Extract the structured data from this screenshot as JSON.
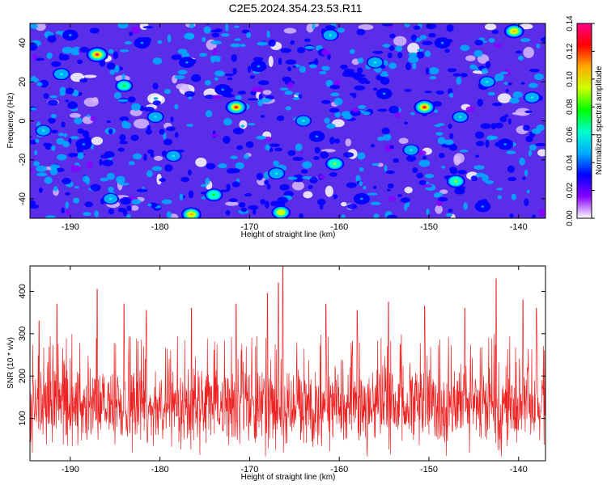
{
  "title": "C2E5.2024.354.23.53.R11",
  "chart_data": [
    {
      "type": "heatmap",
      "xlabel": "Height of straight line (km)",
      "ylabel": "Frequency (Hz)",
      "xlim": [
        -194.5,
        -137
      ],
      "ylim": [
        -50,
        50
      ],
      "xticks": [
        -190,
        -180,
        -170,
        -160,
        -150,
        -140
      ],
      "yticks": [
        -40,
        -20,
        0,
        20,
        40
      ],
      "colorbar": {
        "label": "Normalized spectral amplitude",
        "range": [
          0,
          0.14
        ],
        "ticks": [
          "0.00",
          "0.02",
          "0.04",
          "0.06",
          "0.08",
          "0.10",
          "0.12",
          "0.14"
        ],
        "colors": [
          "#ffffff",
          "#8800ff",
          "#0000ff",
          "#00aaff",
          "#00ffcc",
          "#00ff00",
          "#ccff00",
          "#ffaa00",
          "#ff0000",
          "#ff0088"
        ]
      },
      "background_level": 0.022,
      "peaks": [
        {
          "x": -187.0,
          "y": 34,
          "z": 0.135
        },
        {
          "x": -171.5,
          "y": 7,
          "z": 0.13
        },
        {
          "x": -150.5,
          "y": 7,
          "z": 0.13
        },
        {
          "x": -140.5,
          "y": 46,
          "z": 0.11
        },
        {
          "x": -176.5,
          "y": -48,
          "z": 0.11
        },
        {
          "x": -166.5,
          "y": -47,
          "z": 0.1
        },
        {
          "x": -160.5,
          "y": -22,
          "z": 0.09
        },
        {
          "x": -147.0,
          "y": -31,
          "z": 0.09
        },
        {
          "x": -174.0,
          "y": -38,
          "z": 0.085
        },
        {
          "x": -184.0,
          "y": 18,
          "z": 0.075
        },
        {
          "x": -191.0,
          "y": 24,
          "z": 0.07
        },
        {
          "x": -156.0,
          "y": 30,
          "z": 0.07
        },
        {
          "x": -167.0,
          "y": -27,
          "z": 0.07
        },
        {
          "x": -180.5,
          "y": 2,
          "z": 0.065
        },
        {
          "x": -138.5,
          "y": 12,
          "z": 0.065
        },
        {
          "x": -146.5,
          "y": 2,
          "z": 0.06
        },
        {
          "x": -152.0,
          "y": -15,
          "z": 0.06
        },
        {
          "x": -161.0,
          "y": 44,
          "z": 0.06
        },
        {
          "x": -178.5,
          "y": -18,
          "z": 0.06
        },
        {
          "x": -143.5,
          "y": 20,
          "z": 0.06
        },
        {
          "x": -185.5,
          "y": -40,
          "z": 0.055
        },
        {
          "x": -164.0,
          "y": 0,
          "z": 0.055
        },
        {
          "x": -193.0,
          "y": -5,
          "z": 0.055
        },
        {
          "x": -157.5,
          "y": -40,
          "z": 0.05
        },
        {
          "x": -169.0,
          "y": 28,
          "z": 0.05
        },
        {
          "x": -182.0,
          "y": 40,
          "z": 0.05
        },
        {
          "x": -148.5,
          "y": 40,
          "z": 0.05
        },
        {
          "x": -141.5,
          "y": -12,
          "z": 0.05
        },
        {
          "x": -188.5,
          "y": -12,
          "z": 0.05
        },
        {
          "x": -155.0,
          "y": 14,
          "z": 0.048
        },
        {
          "x": -173.0,
          "y": 16,
          "z": 0.048
        },
        {
          "x": -162.5,
          "y": -8,
          "z": 0.045
        },
        {
          "x": -144.0,
          "y": -44,
          "z": 0.045
        },
        {
          "x": -177.0,
          "y": 30,
          "z": 0.045
        },
        {
          "x": -190.0,
          "y": 44,
          "z": 0.045
        }
      ]
    },
    {
      "type": "line",
      "xlabel": "Height of straight line (km)",
      "ylabel": "SNR (10 * v/v)",
      "xlim": [
        -194.5,
        -137
      ],
      "ylim": [
        0,
        460
      ],
      "xticks": [
        -190,
        -180,
        -170,
        -160,
        -150,
        -140
      ],
      "yticks": [
        100,
        200,
        300,
        400
      ],
      "color": "#ee2222",
      "n_samples": 1500,
      "baseline": 130,
      "noise_range": [
        10,
        300
      ],
      "spikes": [
        {
          "x": -193.5,
          "y": 330
        },
        {
          "x": -191.5,
          "y": 370
        },
        {
          "x": -187.0,
          "y": 405
        },
        {
          "x": -184.0,
          "y": 370
        },
        {
          "x": -181.5,
          "y": 355
        },
        {
          "x": -176.5,
          "y": 360
        },
        {
          "x": -171.5,
          "y": 370
        },
        {
          "x": -168.0,
          "y": 395
        },
        {
          "x": -166.3,
          "y": 460
        },
        {
          "x": -166.8,
          "y": 420
        },
        {
          "x": -161.5,
          "y": 370
        },
        {
          "x": -158.0,
          "y": 355
        },
        {
          "x": -154.5,
          "y": 375
        },
        {
          "x": -150.5,
          "y": 365
        },
        {
          "x": -146.0,
          "y": 360
        },
        {
          "x": -142.5,
          "y": 430
        },
        {
          "x": -139.5,
          "y": 380
        },
        {
          "x": -138.0,
          "y": 360
        }
      ]
    }
  ]
}
